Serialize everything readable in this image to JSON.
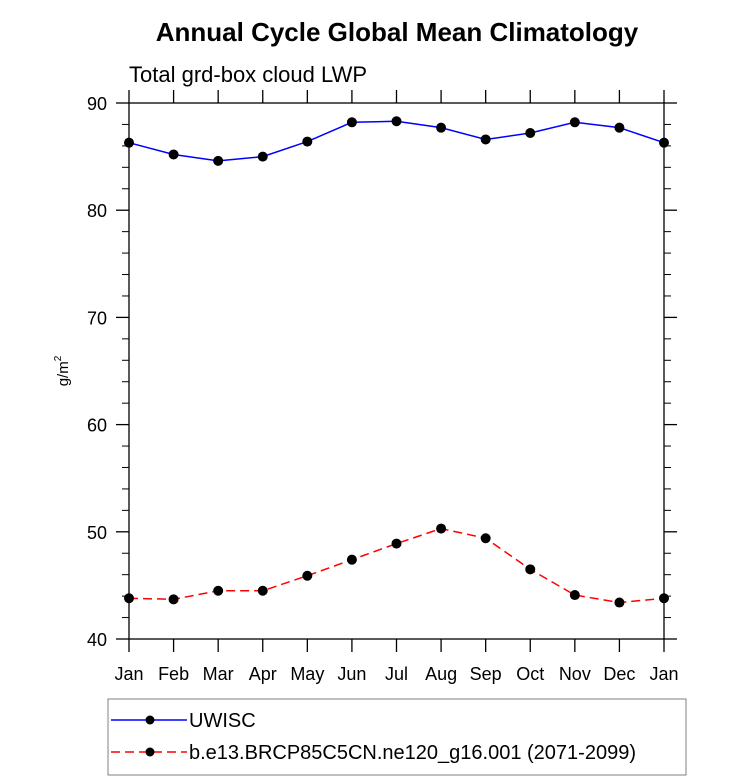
{
  "chart_data": {
    "type": "line",
    "title": "Annual Cycle Global Mean Climatology",
    "subtitle": "Total grd-box cloud LWP",
    "xlabel": "",
    "ylabel": "g/m",
    "ylabel_superscript": "2",
    "ylim": [
      40,
      90
    ],
    "yticks": [
      40,
      50,
      60,
      70,
      80,
      90
    ],
    "y_minor_step": 2,
    "categories": [
      "Jan",
      "Feb",
      "Mar",
      "Apr",
      "May",
      "Jun",
      "Jul",
      "Aug",
      "Sep",
      "Oct",
      "Nov",
      "Dec",
      "Jan"
    ],
    "grid": false,
    "legend_position": "bottom",
    "series": [
      {
        "name": "UWISC",
        "color": "#0000ff",
        "dash": "solid",
        "marker": "filled-circle",
        "values": [
          86.3,
          85.2,
          84.6,
          85.0,
          86.4,
          88.2,
          88.3,
          87.7,
          86.6,
          87.2,
          88.2,
          87.7,
          86.3
        ]
      },
      {
        "name": "b.e13.BRCP85C5CN.ne120_g16.001 (2071-2099)",
        "color": "#ff0000",
        "dash": "dashed",
        "marker": "filled-circle",
        "values": [
          43.8,
          43.7,
          44.5,
          44.5,
          45.9,
          47.4,
          48.9,
          50.3,
          49.4,
          46.5,
          44.1,
          43.4,
          43.8
        ]
      }
    ]
  }
}
